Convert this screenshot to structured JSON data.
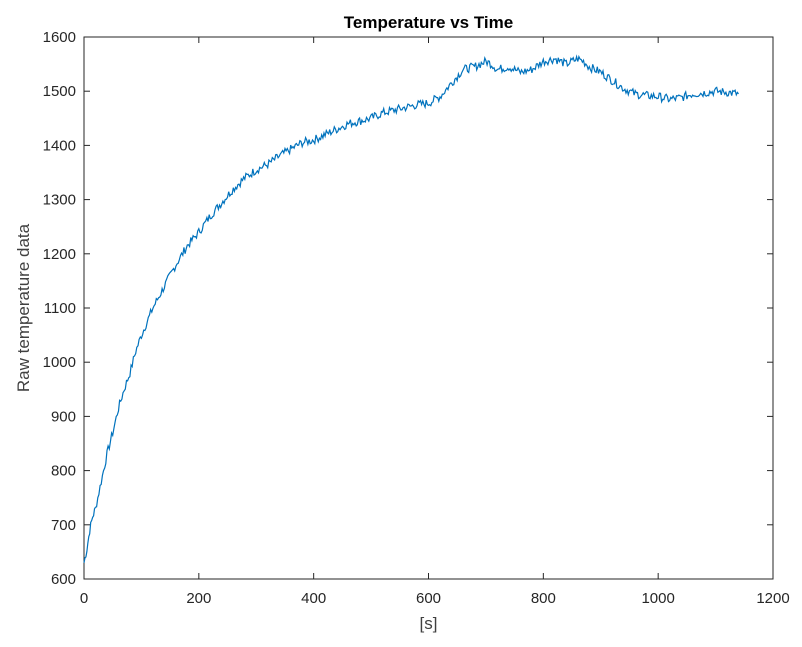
{
  "chart_data": {
    "type": "line",
    "title": "Temperature vs Time",
    "xlabel": "[s]",
    "ylabel": "Raw temperature data",
    "xlim": [
      0,
      1200
    ],
    "ylim": [
      600,
      1600
    ],
    "x_ticks": [
      "0",
      "200",
      "400",
      "600",
      "800",
      "1000",
      "1200"
    ],
    "y_ticks": [
      "600",
      "700",
      "800",
      "900",
      "1000",
      "1100",
      "1200",
      "1300",
      "1400",
      "1500",
      "1600"
    ],
    "grid": false,
    "legend": "none",
    "line_color": "#0072BD",
    "series": [
      {
        "x": [
          0,
          5,
          10,
          15,
          20,
          30,
          40,
          50,
          60,
          70,
          80,
          90,
          100,
          120,
          140,
          160,
          180,
          200,
          220,
          240,
          260,
          280,
          300,
          320,
          340,
          360,
          380,
          400,
          420,
          440,
          460,
          480,
          500,
          520,
          540,
          560,
          580,
          600,
          620,
          640,
          660,
          680,
          700,
          710,
          720,
          740,
          760,
          780,
          800,
          820,
          840,
          860,
          870,
          880,
          900,
          920,
          940,
          960,
          980,
          1000,
          1020,
          1040,
          1060,
          1080,
          1100,
          1120,
          1140
        ],
        "y": [
          630,
          655,
          690,
          715,
          730,
          780,
          830,
          870,
          915,
          950,
          980,
          1020,
          1050,
          1100,
          1140,
          1180,
          1215,
          1240,
          1270,
          1295,
          1320,
          1340,
          1355,
          1365,
          1380,
          1393,
          1405,
          1410,
          1420,
          1430,
          1440,
          1445,
          1450,
          1460,
          1465,
          1470,
          1475,
          1478,
          1490,
          1515,
          1540,
          1545,
          1555,
          1550,
          1540,
          1545,
          1535,
          1540,
          1555,
          1560,
          1550,
          1560,
          1555,
          1545,
          1535,
          1520,
          1505,
          1495,
          1492,
          1490,
          1485,
          1488,
          1495,
          1497,
          1500,
          1498,
          1495
        ]
      }
    ]
  }
}
